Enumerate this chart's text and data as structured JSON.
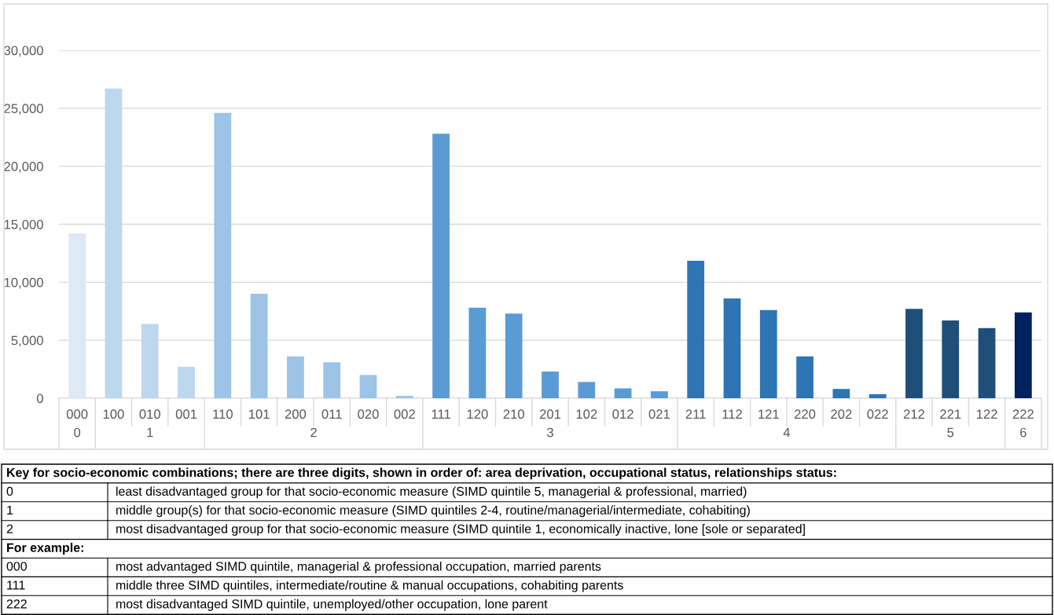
{
  "chart_data": {
    "type": "bar",
    "categories": [
      "000",
      "100",
      "010",
      "001",
      "110",
      "101",
      "200",
      "011",
      "020",
      "002",
      "111",
      "120",
      "210",
      "201",
      "102",
      "012",
      "021",
      "211",
      "112",
      "121",
      "220",
      "202",
      "022",
      "212",
      "221",
      "122",
      "222"
    ],
    "values": [
      14200,
      26700,
      6400,
      2700,
      24600,
      9000,
      3600,
      3100,
      2000,
      200,
      22800,
      7800,
      7300,
      2300,
      1400,
      850,
      600,
      11850,
      8600,
      7600,
      3600,
      800,
      350,
      7700,
      6700,
      6050,
      7400
    ],
    "colors": [
      "#dde9f6",
      "#bdd7ee",
      "#bdd7ee",
      "#bdd7ee",
      "#9dc3e6",
      "#9dc3e6",
      "#9dc3e6",
      "#9dc3e6",
      "#9dc3e6",
      "#9dc3e6",
      "#5b9bd5",
      "#5b9bd5",
      "#5b9bd5",
      "#5b9bd5",
      "#5b9bd5",
      "#5b9bd5",
      "#5b9bd5",
      "#2e75b6",
      "#2e75b6",
      "#2e75b6",
      "#2e75b6",
      "#2e75b6",
      "#2e75b6",
      "#1f4e79",
      "#1f4e79",
      "#1f4e79",
      "#002060"
    ],
    "ylim": [
      0,
      30000
    ],
    "yticks": [
      {
        "value": 0,
        "label": "0"
      },
      {
        "value": 5000,
        "label": "5,000"
      },
      {
        "value": 10000,
        "label": "10,000"
      },
      {
        "value": 15000,
        "label": "15,000"
      },
      {
        "value": 20000,
        "label": "20,000"
      },
      {
        "value": 25000,
        "label": "25,000"
      },
      {
        "value": 30000,
        "label": "30,000"
      }
    ],
    "grid": "y",
    "annotations": [
      "0",
      "1",
      "2",
      "3",
      "4",
      "5",
      "6",
      "Key for socio-economic combinations; there are three digits, shown in order of: area deprivation, occupational status, relationships status:",
      "0",
      "least disadvantaged group for that socio-economic measure (SIMD quintile 5, managerial & professional, married)",
      "1",
      "middle group(s) for that socio-economic measure (SIMD quintiles 2-4, routine/managerial/intermediate, cohabiting)",
      "2",
      "most disadvantaged group for that socio-economic measure (SIMD quintile 1, economically inactive, lone [sole or separated]",
      "For example:",
      "000",
      "most advantaged SIMD quintile, managerial & professional occupation, married parents",
      "111",
      "middle three SIMD quintiles, intermediate/routine & manual occupations, cohabiting parents",
      "222",
      "most disadvantaged SIMD quintile, unemployed/other occupation, lone parent"
    ]
  }
}
